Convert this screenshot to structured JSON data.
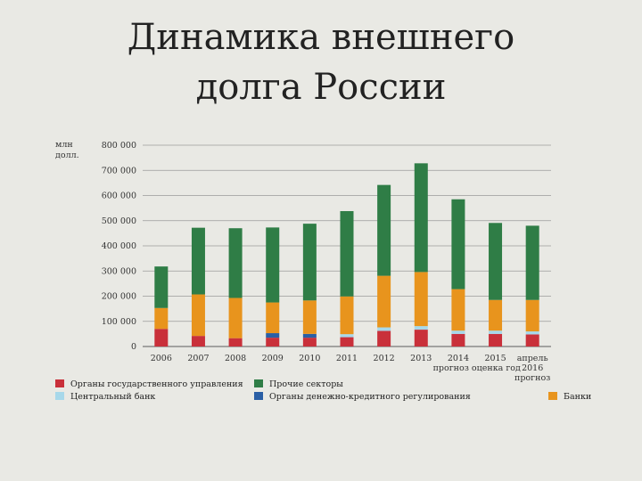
{
  "title_line1": "Динамика внешнего",
  "title_line2": "долга России",
  "unit_line1": "млн",
  "unit_line2": "долл.",
  "chart_data": {
    "type": "bar",
    "stacked": true,
    "title": "Динамика внешнего долга России",
    "ylabel": "млн долл.",
    "ylim": [
      0,
      800000
    ],
    "yticks": [
      "0",
      "100 000",
      "200 000",
      "300 000",
      "400 000",
      "500 000",
      "600 000",
      "700 000",
      "800 000"
    ],
    "grid": true,
    "legend": "bottom",
    "categories": [
      [
        "2006"
      ],
      [
        "2007"
      ],
      [
        "2008"
      ],
      [
        "2009"
      ],
      [
        "2010"
      ],
      [
        "2011"
      ],
      [
        "2012"
      ],
      [
        "2013"
      ],
      [
        "2014"
      ],
      [
        "2015"
      ],
      [
        "апрель",
        "2016",
        "прогноз"
      ]
    ],
    "category_note": "прогноз оценка год",
    "series": [
      {
        "name": "Органы государственного управления",
        "color": "#c9303a",
        "values": [
          70000,
          42000,
          33000,
          35000,
          35000,
          37000,
          62000,
          67000,
          50000,
          50000,
          48000
        ]
      },
      {
        "name": "Органы денежно-кредитного регулирования",
        "color": "#2a5fa5",
        "values": [
          0,
          0,
          0,
          18000,
          15000,
          0,
          0,
          0,
          0,
          0,
          0
        ]
      },
      {
        "name": "Центральный банк",
        "color": "#a7d8ea",
        "values": [
          0,
          0,
          0,
          0,
          0,
          12000,
          14000,
          14000,
          13000,
          13000,
          12000
        ]
      },
      {
        "name": "Банки",
        "color": "#e8941d",
        "values": [
          83000,
          165000,
          160000,
          122000,
          133000,
          150000,
          205000,
          215000,
          165000,
          122000,
          125000
        ]
      },
      {
        "name": "Прочие секторы",
        "color": "#2f7d46",
        "values": [
          165000,
          265000,
          277000,
          298000,
          305000,
          339000,
          361000,
          432000,
          357000,
          306000,
          295000
        ]
      }
    ]
  },
  "legend": [
    {
      "label": "Органы государственного управления",
      "color": "#c9303a"
    },
    {
      "label": "Центральный банк",
      "color": "#a7d8ea"
    },
    {
      "label": "Прочие секторы",
      "color": "#2f7d46"
    },
    {
      "label": "Органы денежно-кредитного регулирования",
      "color": "#2a5fa5"
    },
    {
      "label": "Банки",
      "color": "#e8941d"
    }
  ]
}
